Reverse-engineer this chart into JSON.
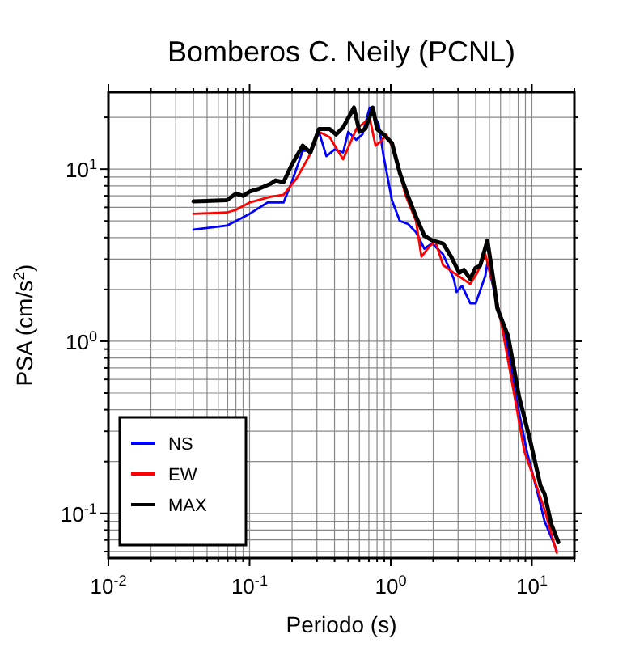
{
  "chart_data": {
    "type": "line",
    "title": "Bomberos C. Neily (PCNL)",
    "xlabel": "Periodo (s)",
    "ylabel": "PSA (cm/s$^{2}$)",
    "log": "xy",
    "grid": true,
    "legend": "bottom left",
    "line_style": "solid",
    "xlim": [
      0.01,
      20
    ],
    "ylim": [
      0.055,
      28
    ],
    "xticks": [
      {
        "value": 0.01,
        "label": "10$^{-2}$"
      },
      {
        "value": 0.02,
        "label": null
      },
      {
        "value": 0.03,
        "label": null
      },
      {
        "value": 0.04,
        "label": null
      },
      {
        "value": 0.05,
        "label": null
      },
      {
        "value": 0.06,
        "label": null
      },
      {
        "value": 0.07,
        "label": null
      },
      {
        "value": 0.08,
        "label": null
      },
      {
        "value": 0.09,
        "label": null
      },
      {
        "value": 0.1,
        "label": "10$^{-1}$"
      },
      {
        "value": 0.2,
        "label": null
      },
      {
        "value": 0.3,
        "label": null
      },
      {
        "value": 0.4,
        "label": null
      },
      {
        "value": 0.5,
        "label": null
      },
      {
        "value": 0.6,
        "label": null
      },
      {
        "value": 0.7,
        "label": null
      },
      {
        "value": 0.8,
        "label": null
      },
      {
        "value": 0.9,
        "label": null
      },
      {
        "value": 1,
        "label": "10$^{0}$"
      },
      {
        "value": 2,
        "label": null
      },
      {
        "value": 3,
        "label": null
      },
      {
        "value": 4,
        "label": null
      },
      {
        "value": 5,
        "label": null
      },
      {
        "value": 6,
        "label": null
      },
      {
        "value": 7,
        "label": null
      },
      {
        "value": 8,
        "label": null
      },
      {
        "value": 9,
        "label": null
      },
      {
        "value": 10,
        "label": "10$^{1}$"
      },
      {
        "value": 20,
        "label": null
      }
    ],
    "yticks": [
      {
        "value": 0.06,
        "label": null
      },
      {
        "value": 0.07,
        "label": null
      },
      {
        "value": 0.08,
        "label": null
      },
      {
        "value": 0.09,
        "label": null
      },
      {
        "value": 0.1,
        "label": "10$^{-1}$"
      },
      {
        "value": 0.2,
        "label": null
      },
      {
        "value": 0.3,
        "label": null
      },
      {
        "value": 0.4,
        "label": null
      },
      {
        "value": 0.5,
        "label": null
      },
      {
        "value": 0.6,
        "label": null
      },
      {
        "value": 0.7,
        "label": null
      },
      {
        "value": 0.8,
        "label": null
      },
      {
        "value": 0.9,
        "label": null
      },
      {
        "value": 1,
        "label": "10$^{0}$"
      },
      {
        "value": 2,
        "label": null
      },
      {
        "value": 3,
        "label": null
      },
      {
        "value": 4,
        "label": null
      },
      {
        "value": 5,
        "label": null
      },
      {
        "value": 6,
        "label": null
      },
      {
        "value": 7,
        "label": null
      },
      {
        "value": 8,
        "label": null
      },
      {
        "value": 9,
        "label": null
      },
      {
        "value": 10,
        "label": "10$^{1}$"
      },
      {
        "value": 20,
        "label": null
      }
    ],
    "series": [
      {
        "name": "NS",
        "color": "#0000ff",
        "x": [
          0.04,
          0.069,
          0.08,
          0.1,
          0.134,
          0.174,
          0.2,
          0.238,
          0.27,
          0.31,
          0.35,
          0.4,
          0.46,
          0.5,
          0.57,
          0.63,
          0.71,
          0.82,
          0.89,
          1.02,
          1.16,
          1.33,
          1.51,
          1.73,
          1.97,
          2.35,
          2.8,
          2.93,
          3.2,
          3.66,
          4.0,
          4.68,
          4.84,
          5.43,
          6.5,
          7.7,
          9.2,
          11.5,
          12.3,
          15.0
        ],
        "values": [
          4.45,
          4.7,
          5.0,
          5.5,
          6.4,
          6.4,
          8.5,
          12.8,
          12.8,
          16.5,
          11.9,
          13.0,
          12.5,
          16.5,
          14.8,
          15.9,
          22.8,
          18.4,
          11.9,
          6.6,
          5.0,
          4.8,
          4.3,
          3.45,
          3.7,
          3.2,
          2.3,
          1.93,
          2.1,
          1.66,
          1.66,
          2.4,
          2.87,
          1.93,
          1.07,
          0.48,
          0.23,
          0.113,
          0.09,
          0.061
        ]
      },
      {
        "name": "EW",
        "color": "#ff0000",
        "x": [
          0.04,
          0.069,
          0.08,
          0.1,
          0.14,
          0.174,
          0.217,
          0.27,
          0.31,
          0.37,
          0.46,
          0.57,
          0.71,
          0.78,
          0.85,
          0.93,
          1.06,
          1.27,
          1.51,
          1.65,
          1.8,
          2.06,
          2.35,
          2.8,
          3.66,
          4.1,
          4.68,
          5.43,
          6.2,
          7.4,
          8.83,
          10.6,
          12.3,
          15.0
        ],
        "values": [
          5.5,
          5.6,
          5.8,
          6.4,
          6.9,
          7.1,
          8.9,
          12.3,
          16.5,
          15.3,
          11.4,
          17.1,
          19.8,
          13.7,
          14.5,
          15.9,
          12.8,
          7.1,
          5.0,
          3.1,
          3.4,
          3.85,
          2.77,
          2.5,
          2.15,
          2.5,
          3.2,
          2.0,
          1.16,
          0.52,
          0.23,
          0.15,
          0.105,
          0.059
        ]
      },
      {
        "name": "MAX",
        "color": "#000000",
        "x": [
          0.04,
          0.069,
          0.08,
          0.09,
          0.1,
          0.117,
          0.14,
          0.153,
          0.174,
          0.199,
          0.238,
          0.27,
          0.31,
          0.37,
          0.41,
          0.46,
          0.549,
          0.6,
          0.66,
          0.747,
          0.8,
          0.89,
          1.02,
          1.16,
          1.33,
          1.51,
          1.73,
          1.97,
          2.35,
          2.68,
          3.06,
          3.3,
          3.66,
          3.99,
          4.3,
          4.84,
          5.43,
          5.69,
          6.79,
          8.1,
          9.67,
          11.5,
          12.3,
          13.7,
          15.4
        ],
        "values": [
          6.5,
          6.6,
          7.2,
          7.0,
          7.4,
          7.7,
          8.2,
          8.6,
          8.4,
          10.6,
          13.7,
          12.5,
          17.1,
          17.1,
          15.9,
          17.5,
          22.8,
          16.5,
          17.1,
          22.8,
          17.1,
          15.9,
          14.2,
          9.5,
          6.9,
          5.3,
          4.1,
          3.85,
          3.7,
          3.1,
          2.5,
          2.6,
          2.3,
          2.67,
          2.75,
          3.85,
          2.07,
          1.55,
          1.07,
          0.48,
          0.27,
          0.145,
          0.13,
          0.087,
          0.068
        ]
      }
    ]
  }
}
